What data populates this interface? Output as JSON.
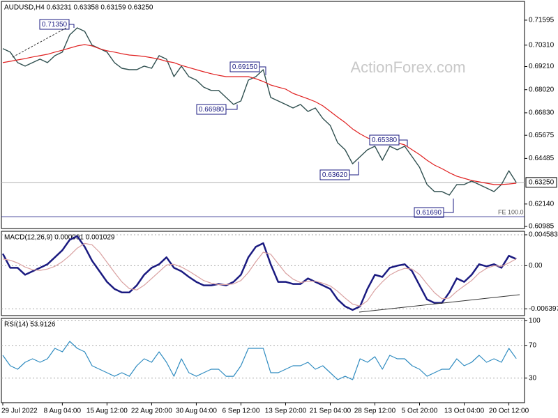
{
  "chart_data": [
    {
      "type": "line",
      "title": "AUDUSD,H4  0.63231 0.63358 0.63159 0.63250",
      "watermark": "ActionForex.com",
      "series": [
        {
          "name": "Close",
          "color": "#2f4f4f",
          "values": [
            0.7013,
            0.6995,
            0.6941,
            0.6923,
            0.6941,
            0.6959,
            0.6941,
            0.6977,
            0.6995,
            0.7084,
            0.712,
            0.7102,
            0.7031,
            0.7013,
            0.6995,
            0.6941,
            0.6912,
            0.6905,
            0.6905,
            0.6923,
            0.6912,
            0.6977,
            0.6959,
            0.6869,
            0.6923,
            0.6869,
            0.6851,
            0.6815,
            0.6798,
            0.6798,
            0.6762,
            0.6726,
            0.6744,
            0.6851,
            0.6869,
            0.6905,
            0.6762,
            0.6744,
            0.6726,
            0.6708,
            0.6726,
            0.669,
            0.6708,
            0.6654,
            0.6618,
            0.6529,
            0.6493,
            0.6421,
            0.6457,
            0.6493,
            0.6511,
            0.6439,
            0.6511,
            0.6493,
            0.6511,
            0.6457,
            0.6403,
            0.6314,
            0.6278,
            0.6278,
            0.626,
            0.6314,
            0.6314,
            0.6332,
            0.6314,
            0.6296,
            0.6278,
            0.6314,
            0.6385,
            0.6325
          ]
        },
        {
          "name": "MA",
          "color": "#e02020",
          "values": [
            0.6941,
            0.6948,
            0.6955,
            0.6962,
            0.697,
            0.6977,
            0.6984,
            0.6995,
            0.7005,
            0.7016,
            0.7027,
            0.7034,
            0.7027,
            0.7013,
            0.7002,
            0.6995,
            0.6987,
            0.698,
            0.6977,
            0.6973,
            0.6966,
            0.6959,
            0.6948,
            0.6941,
            0.6927,
            0.6916,
            0.6905,
            0.6894,
            0.6884,
            0.6876,
            0.6869,
            0.6869,
            0.6869,
            0.6869,
            0.6858,
            0.6844,
            0.6826,
            0.6815,
            0.6805,
            0.6783,
            0.6769,
            0.6755,
            0.674,
            0.6719,
            0.669,
            0.6661,
            0.6633,
            0.66,
            0.6575,
            0.6554,
            0.6543,
            0.6536,
            0.6532,
            0.6529,
            0.6518,
            0.6493,
            0.6468,
            0.6439,
            0.6414,
            0.6396,
            0.6375,
            0.6357,
            0.6346,
            0.6335,
            0.6328,
            0.6321,
            0.6314,
            0.6314,
            0.6317,
            0.6321
          ]
        }
      ],
      "ylim": [
        0.6088,
        0.7256
      ],
      "yticks": [
        0.71595,
        {
          "value": 0.7031,
          "label": "0.70310"
        },
        {
          "value": 0.6921,
          "label": "0.69210"
        },
        {
          "value": 0.6802,
          "label": "0.68020"
        },
        {
          "value": 0.6683,
          "label": "0.66830"
        },
        0.65675,
        0.64485,
        {
          "value": 0.6214,
          "label": "0.62140"
        },
        0.60985
      ],
      "last_price": {
        "value": 0.6325,
        "label": "0.63250"
      },
      "annotations": [
        {
          "text": "0.71350"
        },
        {
          "text": "0.69150"
        },
        {
          "text": "0.66980"
        },
        {
          "text": "0.65380"
        },
        {
          "text": "0.63620"
        },
        {
          "text": "0.61690"
        },
        {
          "text": "FE 100.0"
        }
      ]
    },
    {
      "type": "line",
      "title": "MACD(12,26,9) 0.000991 0.001029",
      "series": [
        {
          "name": "MACD",
          "color": "#1a1a80",
          "values": [
            0.00177,
            -0.00031,
            -0.00031,
            -0.00135,
            -0.00083,
            -0.00031,
            0.00021,
            0.00125,
            0.00229,
            0.00385,
            0.00438,
            0.00281,
            0.00073,
            -0.00083,
            -0.0024,
            -0.00344,
            -0.00396,
            -0.00396,
            -0.00292,
            -0.00135,
            -0.00031,
            0.00021,
            0.00125,
            -0.00031,
            -0.00083,
            -0.00167,
            -0.0024,
            -0.00292,
            -0.00292,
            -0.00271,
            -0.00292,
            -0.0024,
            -0.00135,
            0.00125,
            0.00281,
            0.00333,
            0.00021,
            -0.0024,
            -0.0024,
            -0.00271,
            -0.00271,
            -0.00188,
            -0.0024,
            -0.00292,
            -0.00344,
            -0.005,
            -0.00604,
            -0.00656,
            -0.00604,
            -0.00344,
            -0.00135,
            -0.00167,
            -0.00031,
            0,
            0.00021,
            -0.00083,
            -0.00292,
            -0.005,
            -0.00552,
            -0.00552,
            -0.00396,
            -0.00188,
            -0.0024,
            -0.00135,
            0.00021,
            -0.0001,
            0.00021,
            -0.00031,
            0.00146,
            0.000991
          ]
        },
        {
          "name": "Signal",
          "color": "#d9a0a0",
          "values": [
            0.001,
            0.0008,
            0.0004,
            -0.0002,
            -0.0006,
            -0.0007,
            -0.0005,
            -0.0001,
            0.0006,
            0.0015,
            0.0026,
            0.0033,
            0.0031,
            0.002,
            0.0005,
            -0.001,
            -0.0024,
            -0.0034,
            -0.0036,
            -0.0029,
            -0.0019,
            -0.0009,
            0.0001,
            0.0002,
            -0.0002,
            -0.0008,
            -0.0015,
            -0.0022,
            -0.0026,
            -0.0028,
            -0.0028,
            -0.0027,
            -0.0022,
            -0.001,
            0.0006,
            0.002,
            0.0017,
            0.0003,
            -0.0011,
            -0.002,
            -0.0025,
            -0.0023,
            -0.0023,
            -0.0026,
            -0.003,
            -0.0038,
            -0.0048,
            -0.0057,
            -0.006,
            -0.0052,
            -0.0036,
            -0.0024,
            -0.0014,
            -0.0008,
            -0.0004,
            -0.0005,
            -0.0013,
            -0.0027,
            -0.004,
            -0.0049,
            -0.0048,
            -0.0038,
            -0.003,
            -0.0022,
            -0.0011,
            -0.0004,
            0,
            -0.0001,
            0.0004,
            0.001029
          ]
        }
      ],
      "ylim": [
        -0.0074,
        0.0051
      ],
      "yticks": [
        0.004583,
        {
          "value": 0,
          "label": "0.00"
        },
        -0.006397
      ],
      "grid": true
    },
    {
      "type": "line",
      "title": "RSI(14) 53.9126",
      "categories": [
        "29 Jul 2022",
        null,
        null,
        null,
        null,
        null,
        null,
        null,
        "8 Aug 04:00",
        null,
        null,
        null,
        null,
        null,
        "15 Aug 12:00",
        null,
        null,
        null,
        null,
        null,
        "22 Aug 20:00",
        null,
        null,
        null,
        null,
        null,
        "30 Aug 04:00",
        null,
        null,
        null,
        null,
        null,
        "6 Sep 12:00",
        null,
        null,
        null,
        null,
        null,
        "13 Sep 20:00",
        null,
        null,
        null,
        null,
        null,
        "21 Sep 04:00",
        null,
        null,
        null,
        null,
        null,
        "28 Sep 12:00",
        null,
        null,
        null,
        null,
        null,
        "5 Oct 20:00",
        null,
        null,
        null,
        null,
        null,
        "13 Oct 04:00",
        null,
        null,
        null,
        null,
        null,
        "20 Oct 12:00",
        null
      ],
      "series": [
        {
          "name": "RSI",
          "color": "#2e8bc0",
          "values": [
            57.9,
            45.1,
            40.9,
            49.4,
            53.6,
            49.4,
            53.6,
            66.4,
            62.1,
            74.9,
            66.4,
            62.1,
            45.1,
            40.9,
            36.6,
            32.3,
            36.6,
            32.3,
            45.1,
            53.6,
            49.4,
            62.1,
            49.4,
            32.3,
            53.6,
            36.6,
            32.3,
            36.6,
            40.9,
            40.9,
            32.3,
            32.3,
            45.1,
            66.4,
            66.4,
            66.4,
            36.6,
            36.6,
            40.9,
            45.1,
            45.1,
            49.4,
            40.9,
            45.1,
            36.6,
            28.1,
            32.3,
            28.1,
            53.6,
            49.4,
            56.2,
            40.9,
            57.9,
            53.6,
            53.6,
            45.1,
            40.9,
            32.3,
            36.6,
            40.9,
            40.9,
            53.6,
            45.1,
            49.4,
            57.9,
            49.4,
            53.6,
            49.4,
            66.4,
            53.9
          ]
        }
      ],
      "ylim": [
        0,
        103
      ],
      "yticks": [
        100,
        70,
        30
      ],
      "grid": true
    }
  ]
}
